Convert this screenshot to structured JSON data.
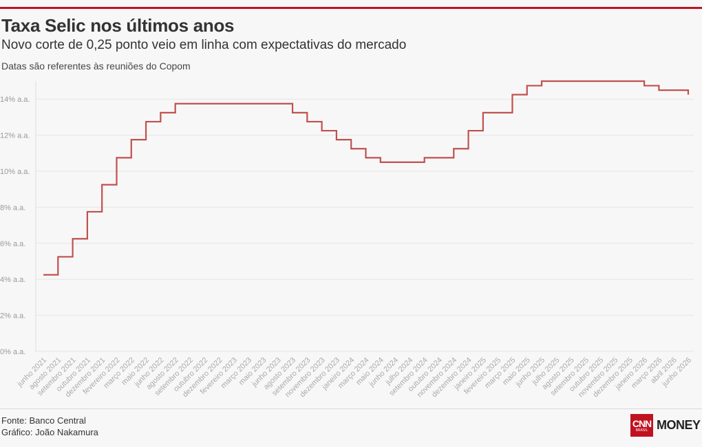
{
  "header": {
    "title": "Taxa Selic nos últimos anos",
    "subtitle": "Novo corte de 0,25 ponto veio em linha com expectativas do mercado",
    "note": "Datas são referentes às reuniões do Copom"
  },
  "footer": {
    "source": "Fonte: Banco Central",
    "credit": "Gráfico: João Nakamura"
  },
  "logo": {
    "brand": "CNN",
    "sub": "BRASIL",
    "section": "MONEY"
  },
  "colors": {
    "accent": "#c1121f",
    "line": "#c0504d",
    "grid": "#e6e6e6"
  },
  "chart_data": {
    "type": "line",
    "step": true,
    "xlabel": "",
    "ylabel": "",
    "ylim": [
      0,
      15
    ],
    "y_ticks": [
      {
        "value": 0,
        "label": "0% a.a."
      },
      {
        "value": 2,
        "label": "2% a.a."
      },
      {
        "value": 4,
        "label": "4% a.a."
      },
      {
        "value": 6,
        "label": "6% a.a."
      },
      {
        "value": 8,
        "label": "8% a.a."
      },
      {
        "value": 10,
        "label": "10% a.a."
      },
      {
        "value": 12,
        "label": "12% a.a."
      },
      {
        "value": 14,
        "label": "14% a.a."
      }
    ],
    "x_tick_labels": [
      "junho 2021",
      "agosto 2021",
      "setembro 2021",
      "outubro 2021",
      "dezembro 2021",
      "fevereiro 2022",
      "março 2022",
      "maio 2022",
      "junho 2022",
      "agosto 2022",
      "setembro 2022",
      "outubro 2022",
      "dezembro 2022",
      "fevereiro 2023",
      "março 2023",
      "maio 2023",
      "junho 2023",
      "agosto 2023",
      "setembro 2023",
      "novembro 2023",
      "dezembro 2023",
      "janeiro 2024",
      "março 2024",
      "maio 2024",
      "junho 2024",
      "julho 2024",
      "setembro 2024",
      "outubro 2024",
      "novembro 2024",
      "dezembro 2024",
      "janeiro 2025",
      "fevereiro 2025",
      "março 2025",
      "maio 2025",
      "junho 2025",
      "julho 2025",
      "agosto 2025",
      "setembro 2025",
      "outubro 2025",
      "novembro 2025",
      "dezembro 2025",
      "janeiro 2026",
      "março 2026",
      "abril 2026",
      "junho 2026"
    ],
    "series": [
      {
        "values": [
          4.25,
          5.25,
          6.25,
          7.75,
          9.25,
          10.75,
          11.75,
          12.75,
          13.25,
          13.75,
          13.75,
          13.75,
          13.75,
          13.75,
          13.75,
          13.75,
          13.75,
          13.25,
          12.75,
          12.25,
          11.75,
          11.25,
          10.75,
          10.5,
          10.5,
          10.5,
          10.75,
          10.75,
          11.25,
          12.25,
          13.25,
          13.25,
          14.25,
          14.75,
          15.0,
          15.0,
          15.0,
          15.0,
          15.0,
          15.0,
          15.0,
          14.75,
          14.5,
          14.5,
          14.25
        ]
      }
    ]
  }
}
